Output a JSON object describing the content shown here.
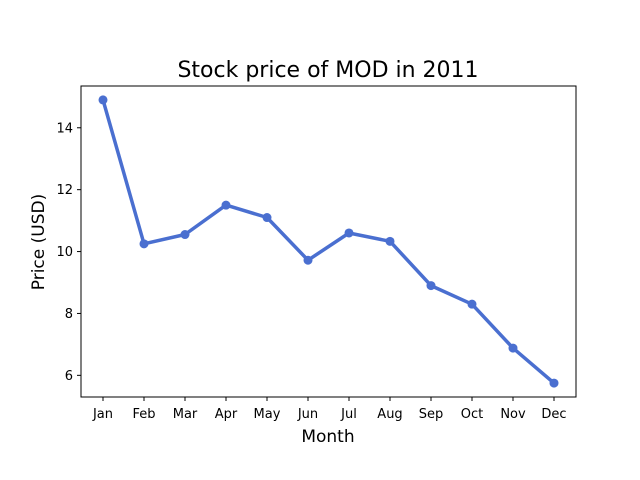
{
  "chart_data": {
    "type": "line",
    "title": "Stock price of MOD in 2011",
    "xlabel": "Month",
    "ylabel": "Price (USD)",
    "categories": [
      "Jan",
      "Feb",
      "Mar",
      "Apr",
      "May",
      "Jun",
      "Jul",
      "Aug",
      "Sep",
      "Oct",
      "Nov",
      "Dec"
    ],
    "series": [
      {
        "values": [
          14.9,
          10.25,
          10.55,
          11.5,
          11.1,
          9.72,
          10.6,
          10.33,
          8.9,
          8.3,
          6.88,
          5.75
        ],
        "color": "#4a6fd0"
      }
    ],
    "yticks": [
      6,
      8,
      10,
      12,
      14
    ],
    "ylim": [
      5.3,
      15.35
    ],
    "grid": false,
    "legend": false
  }
}
